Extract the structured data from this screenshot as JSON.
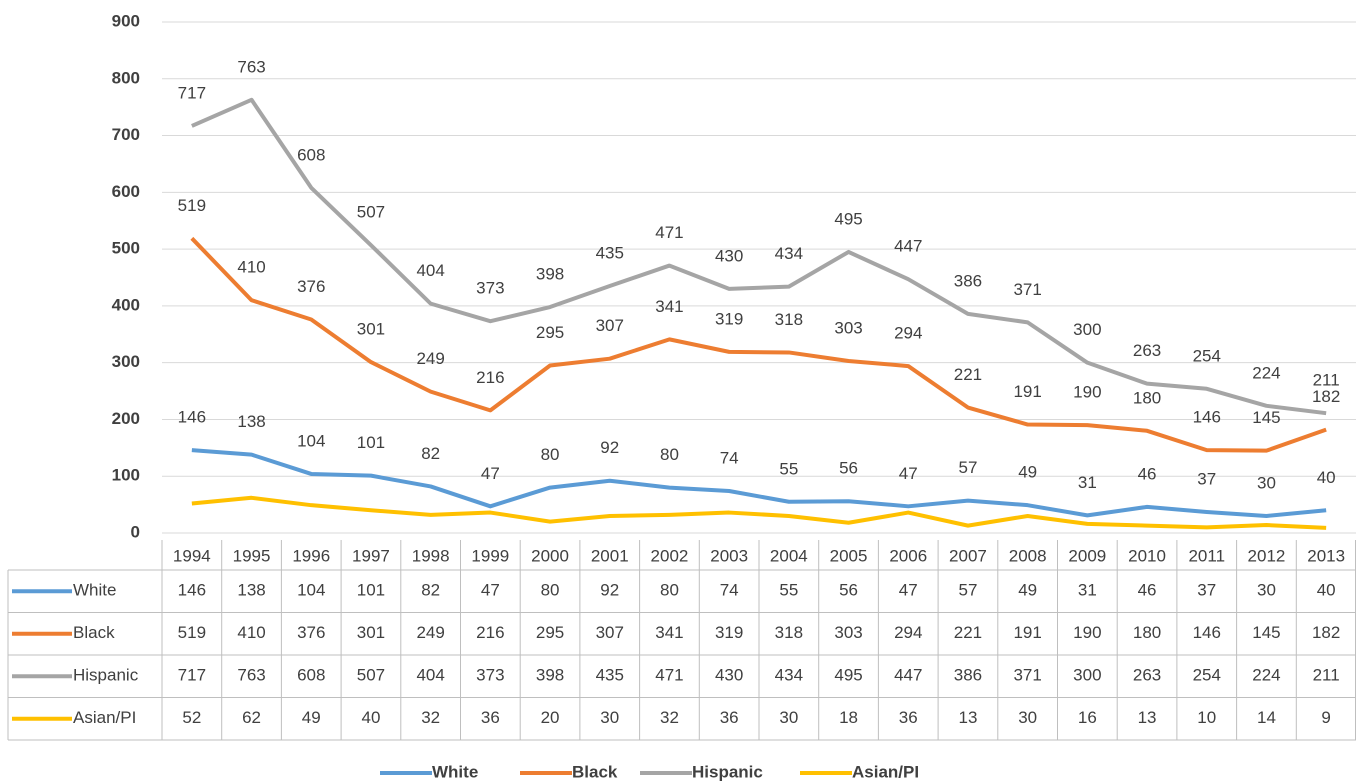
{
  "chart_data": {
    "type": "line",
    "categories": [
      "1994",
      "1995",
      "1996",
      "1997",
      "1998",
      "1999",
      "2000",
      "2001",
      "2002",
      "2003",
      "2004",
      "2005",
      "2006",
      "2007",
      "2008",
      "2009",
      "2010",
      "2011",
      "2012",
      "2013"
    ],
    "series": [
      {
        "name": "White",
        "color": "#5b9bd5",
        "data_labels": true,
        "values": [
          146,
          138,
          104,
          101,
          82,
          47,
          80,
          92,
          80,
          74,
          55,
          56,
          47,
          57,
          49,
          31,
          46,
          37,
          30,
          40
        ]
      },
      {
        "name": "Black",
        "color": "#ed7d31",
        "data_labels": true,
        "values": [
          519,
          410,
          376,
          301,
          249,
          216,
          295,
          307,
          341,
          319,
          318,
          303,
          294,
          221,
          191,
          190,
          180,
          146,
          145,
          182
        ]
      },
      {
        "name": "Hispanic",
        "color": "#a5a5a5",
        "data_labels": true,
        "values": [
          717,
          763,
          608,
          507,
          404,
          373,
          398,
          435,
          471,
          430,
          434,
          495,
          447,
          386,
          371,
          300,
          263,
          254,
          224,
          211
        ]
      },
      {
        "name": "Asian/PI",
        "color": "#ffc000",
        "data_labels": false,
        "values": [
          52,
          62,
          49,
          40,
          32,
          36,
          20,
          30,
          32,
          36,
          30,
          18,
          36,
          13,
          30,
          16,
          13,
          10,
          14,
          9
        ]
      }
    ],
    "ylim": [
      0,
      900
    ],
    "yticks": [
      0,
      100,
      200,
      300,
      400,
      500,
      600,
      700,
      800,
      900
    ],
    "grid": true,
    "data_table": true,
    "legend": "bottom"
  }
}
